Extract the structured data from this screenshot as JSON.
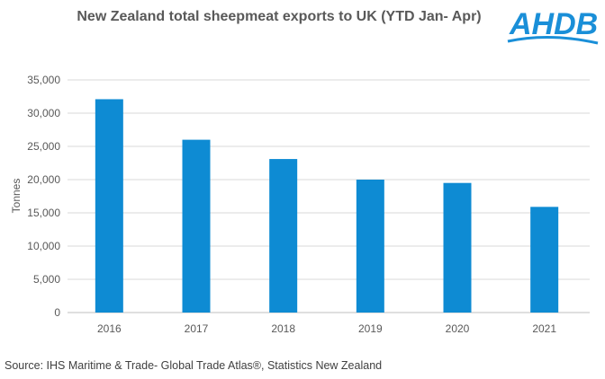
{
  "chart_data": {
    "type": "bar",
    "title": "New Zealand total sheepmeat exports to UK (YTD Jan- Apr)",
    "categories": [
      "2016",
      "2017",
      "2018",
      "2019",
      "2020",
      "2021"
    ],
    "values": [
      32100,
      26000,
      23100,
      20000,
      19500,
      15900
    ],
    "ylabel": "Tonnes",
    "xlabel": "",
    "ylim": [
      0,
      35000
    ],
    "yticks": [
      "0",
      "5,000",
      "10,000",
      "15,000",
      "20,000",
      "25,000",
      "30,000",
      "35,000"
    ],
    "ytick_values": [
      0,
      5000,
      10000,
      15000,
      20000,
      25000,
      30000,
      35000
    ],
    "grid": true,
    "bar_color": "#0E8BD3"
  },
  "logo": {
    "text": "AHDB",
    "color": "#1A8FD8"
  },
  "source": "Source: IHS Maritime & Trade- Global Trade Atlas®, Statistics New Zealand"
}
